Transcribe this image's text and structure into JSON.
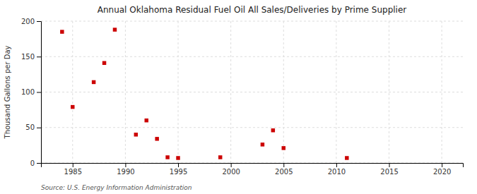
{
  "chart_data": {
    "type": "scatter",
    "title": "Annual Oklahoma Residual Fuel Oil All Sales/Deliveries by Prime Supplier",
    "ylabel": "Thousand Gallons per Day",
    "source": "Source: U.S. Energy Information Administration",
    "x": [
      1984,
      1985,
      1987,
      1988,
      1989,
      1991,
      1992,
      1993,
      1994,
      1995,
      1999,
      2003,
      2004,
      2005,
      2011
    ],
    "values": [
      185,
      79,
      114,
      141,
      188,
      40,
      60,
      34,
      8,
      7,
      8,
      26,
      46,
      21,
      7
    ],
    "color": "#cc0000",
    "marker": "square",
    "xlim": [
      1982,
      2022
    ],
    "ylim": [
      0,
      200
    ],
    "xticks": [
      1985,
      1990,
      1995,
      2000,
      2005,
      2010,
      2015,
      2020
    ],
    "yticks": [
      0,
      50,
      100,
      150,
      200
    ],
    "grid": true
  }
}
